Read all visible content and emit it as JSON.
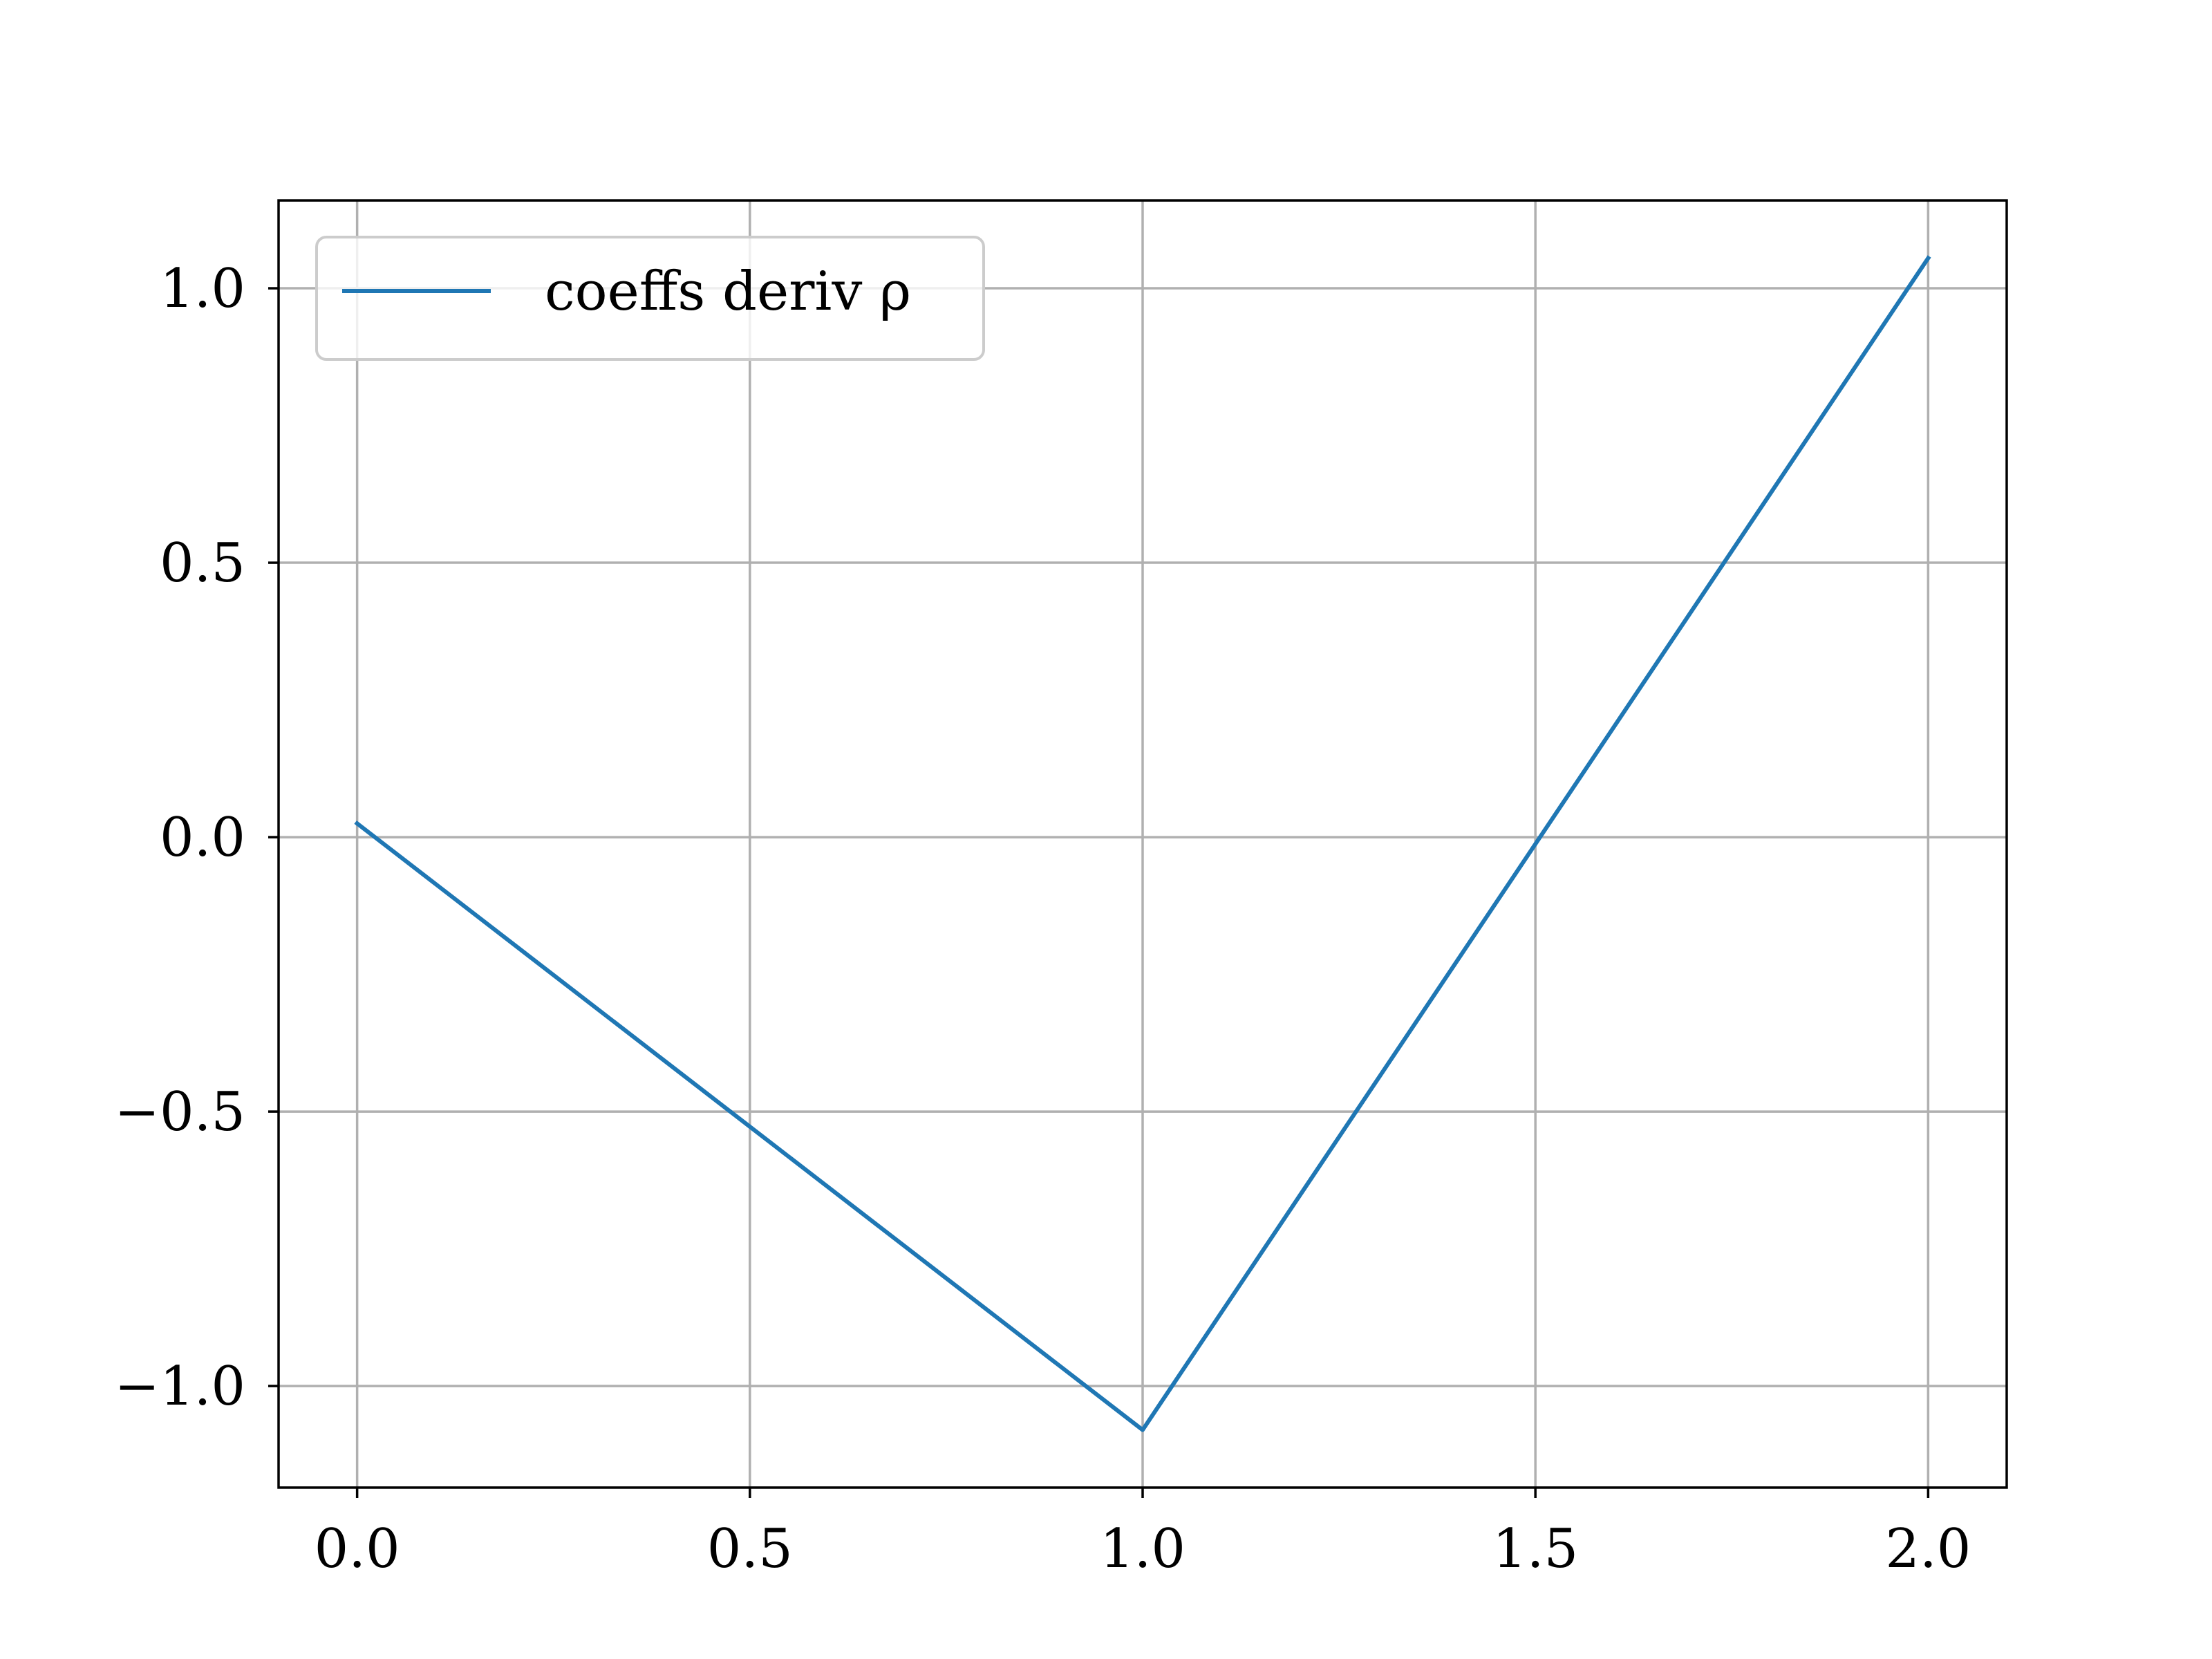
{
  "chart_data": {
    "type": "line",
    "title": "",
    "xlabel": "",
    "ylabel": "",
    "xlim": [
      -0.1,
      2.1
    ],
    "ylim": [
      -1.185,
      1.16
    ],
    "x_ticks": [
      0.0,
      0.5,
      1.0,
      1.5,
      2.0
    ],
    "x_tick_labels": [
      "0.0",
      "0.5",
      "1.0",
      "1.5",
      "2.0"
    ],
    "y_ticks": [
      -1.0,
      -0.5,
      0.0,
      0.5,
      1.0
    ],
    "y_tick_labels": [
      "−1.0",
      "−0.5",
      "0.0",
      "0.5",
      "1.0"
    ],
    "grid": true,
    "legend_position": "top-left",
    "series": [
      {
        "name": "coeffs deriv ρ",
        "color": "#1f77b4",
        "x": [
          0.0,
          1.0,
          2.0
        ],
        "y": [
          0.025,
          -1.08,
          1.055
        ]
      }
    ]
  }
}
